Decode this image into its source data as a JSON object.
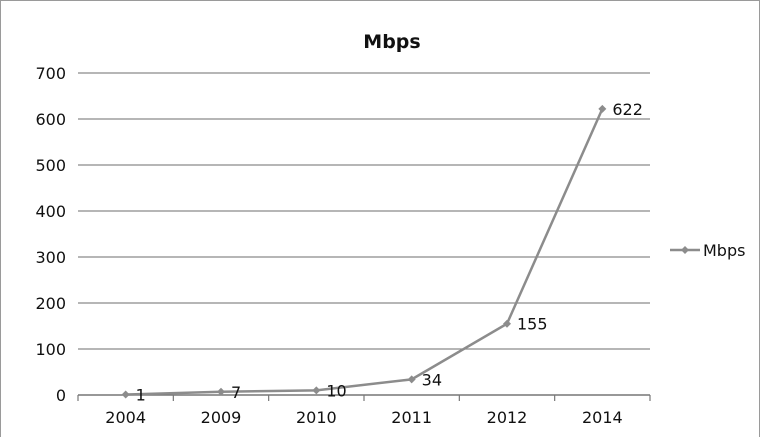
{
  "chart_data": {
    "type": "line",
    "title": "Mbps",
    "xlabel": "",
    "ylabel": "",
    "categories": [
      "2004",
      "2009",
      "2010",
      "2011",
      "2012",
      "2014"
    ],
    "series": [
      {
        "name": "Mbps",
        "values": [
          1,
          7,
          10,
          34,
          155,
          622
        ],
        "color": "#8c8c8c"
      }
    ],
    "data_labels": [
      "1",
      "7",
      "10",
      "34",
      "155",
      "622"
    ],
    "ylim": [
      0,
      700
    ],
    "yticks": [
      "0",
      "100",
      "200",
      "300",
      "400",
      "500",
      "600",
      "700"
    ],
    "grid": "horizontal",
    "legend": "right"
  }
}
